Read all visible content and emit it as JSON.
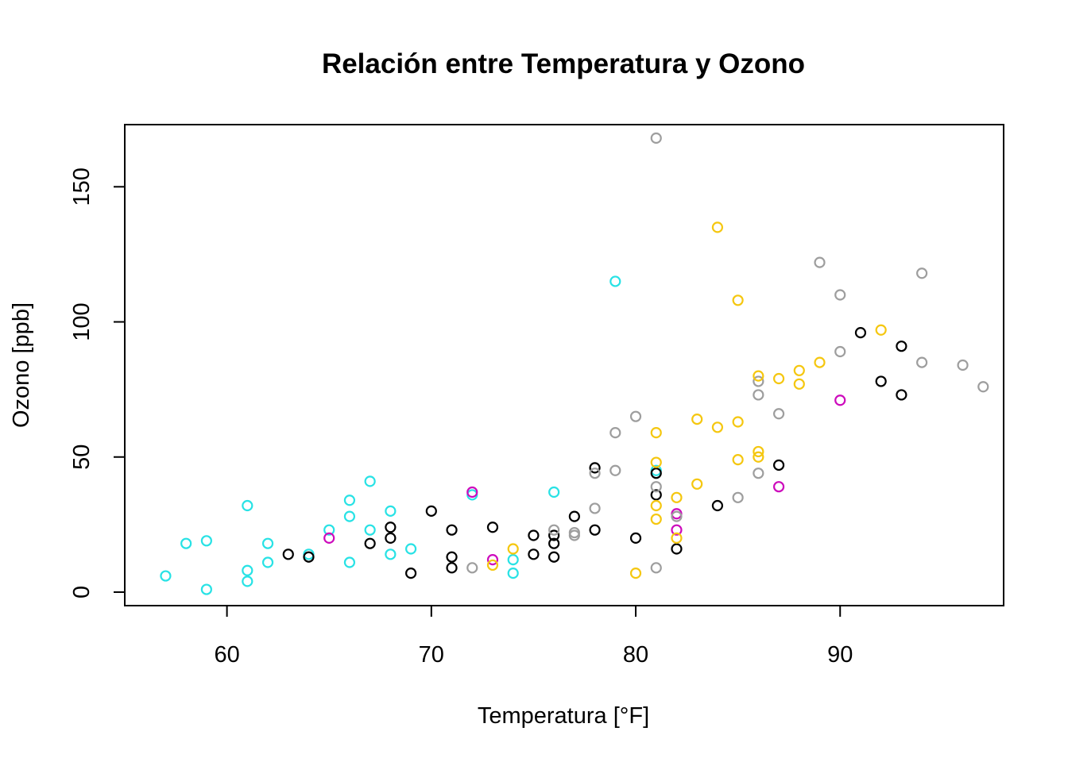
{
  "chart_data": {
    "type": "scatter",
    "title": "Relación entre Temperatura y Ozono",
    "xlabel": "Temperatura [°F]",
    "ylabel": "Ozono [ppb]",
    "xlim": [
      55,
      98
    ],
    "ylim": [
      -5,
      173
    ],
    "xticks": [
      60,
      70,
      80,
      90
    ],
    "yticks": [
      0,
      50,
      100,
      150
    ],
    "grid": false,
    "legend": "none",
    "series": [
      {
        "color": "#28E2E5",
        "points": [
          [
            57,
            6
          ],
          [
            58,
            18
          ],
          [
            59,
            19
          ],
          [
            59,
            1
          ],
          [
            61,
            32
          ],
          [
            61,
            8
          ],
          [
            61,
            4
          ],
          [
            62,
            18
          ],
          [
            62,
            11
          ],
          [
            64,
            14
          ],
          [
            65,
            23
          ],
          [
            66,
            34
          ],
          [
            66,
            28
          ],
          [
            66,
            11
          ],
          [
            67,
            41
          ],
          [
            67,
            23
          ],
          [
            68,
            30
          ],
          [
            68,
            14
          ],
          [
            69,
            16
          ],
          [
            72,
            36
          ],
          [
            74,
            12
          ],
          [
            74,
            7
          ],
          [
            76,
            37
          ],
          [
            79,
            115
          ],
          [
            81,
            45
          ]
        ]
      },
      {
        "color": "#CD0BBC",
        "points": [
          [
            65,
            20
          ],
          [
            72,
            37
          ],
          [
            73,
            12
          ],
          [
            82,
            29
          ],
          [
            82,
            23
          ],
          [
            87,
            39
          ],
          [
            90,
            71
          ]
        ]
      },
      {
        "color": "#000000",
        "points": [
          [
            63,
            14
          ],
          [
            64,
            13
          ],
          [
            67,
            18
          ],
          [
            68,
            24
          ],
          [
            68,
            20
          ],
          [
            69,
            7
          ],
          [
            70,
            30
          ],
          [
            71,
            23
          ],
          [
            71,
            13
          ],
          [
            71,
            9
          ],
          [
            73,
            24
          ],
          [
            75,
            21
          ],
          [
            75,
            14
          ],
          [
            76,
            21
          ],
          [
            76,
            18
          ],
          [
            76,
            13
          ],
          [
            77,
            28
          ],
          [
            78,
            46
          ],
          [
            78,
            23
          ],
          [
            80,
            20
          ],
          [
            81,
            44
          ],
          [
            81,
            36
          ],
          [
            82,
            16
          ],
          [
            84,
            32
          ],
          [
            87,
            47
          ],
          [
            91,
            96
          ],
          [
            92,
            78
          ],
          [
            93,
            91
          ],
          [
            93,
            73
          ]
        ]
      },
      {
        "color": "#9E9E9E",
        "points": [
          [
            72,
            9
          ],
          [
            76,
            23
          ],
          [
            77,
            22
          ],
          [
            77,
            21
          ],
          [
            78,
            44
          ],
          [
            78,
            31
          ],
          [
            79,
            59
          ],
          [
            79,
            45
          ],
          [
            80,
            65
          ],
          [
            81,
            168
          ],
          [
            81,
            39
          ],
          [
            81,
            9
          ],
          [
            82,
            28
          ],
          [
            85,
            35
          ],
          [
            86,
            78
          ],
          [
            86,
            73
          ],
          [
            86,
            44
          ],
          [
            87,
            66
          ],
          [
            89,
            122
          ],
          [
            90,
            110
          ],
          [
            90,
            89
          ],
          [
            94,
            118
          ],
          [
            94,
            85
          ],
          [
            96,
            84
          ],
          [
            97,
            76
          ]
        ]
      },
      {
        "color": "#F5C710",
        "points": [
          [
            73,
            10
          ],
          [
            74,
            16
          ],
          [
            80,
            7
          ],
          [
            81,
            59
          ],
          [
            81,
            48
          ],
          [
            81,
            32
          ],
          [
            81,
            27
          ],
          [
            82,
            35
          ],
          [
            82,
            20
          ],
          [
            83,
            64
          ],
          [
            83,
            40
          ],
          [
            84,
            135
          ],
          [
            84,
            61
          ],
          [
            85,
            108
          ],
          [
            85,
            63
          ],
          [
            85,
            49
          ],
          [
            86,
            80
          ],
          [
            86,
            52
          ],
          [
            86,
            50
          ],
          [
            87,
            79
          ],
          [
            88,
            82
          ],
          [
            88,
            77
          ],
          [
            89,
            85
          ],
          [
            92,
            97
          ]
        ]
      }
    ]
  }
}
